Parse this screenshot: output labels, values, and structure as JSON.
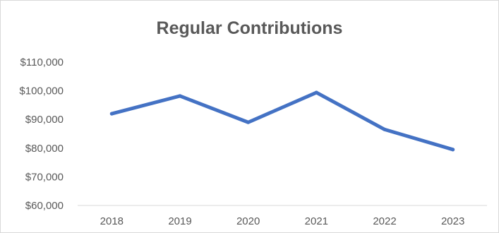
{
  "chart_data": {
    "type": "line",
    "title": "Regular Contributions",
    "xlabel": "",
    "ylabel": "",
    "categories": [
      "2018",
      "2019",
      "2020",
      "2021",
      "2022",
      "2023"
    ],
    "series": [
      {
        "values": [
          92000,
          98200,
          89000,
          99400,
          86500,
          79500
        ]
      }
    ],
    "ylim": [
      60000,
      110000
    ],
    "yticks": [
      60000,
      70000,
      80000,
      90000,
      100000,
      110000
    ],
    "ytick_labels": [
      "$60,000",
      "$70,000",
      "$80,000",
      "$90,000",
      "$100,000",
      "$110,000"
    ],
    "grid": false,
    "legend": "none",
    "line_color": "#4472c4",
    "text_color": "#595959",
    "axis_color": "#d9d9d9"
  }
}
